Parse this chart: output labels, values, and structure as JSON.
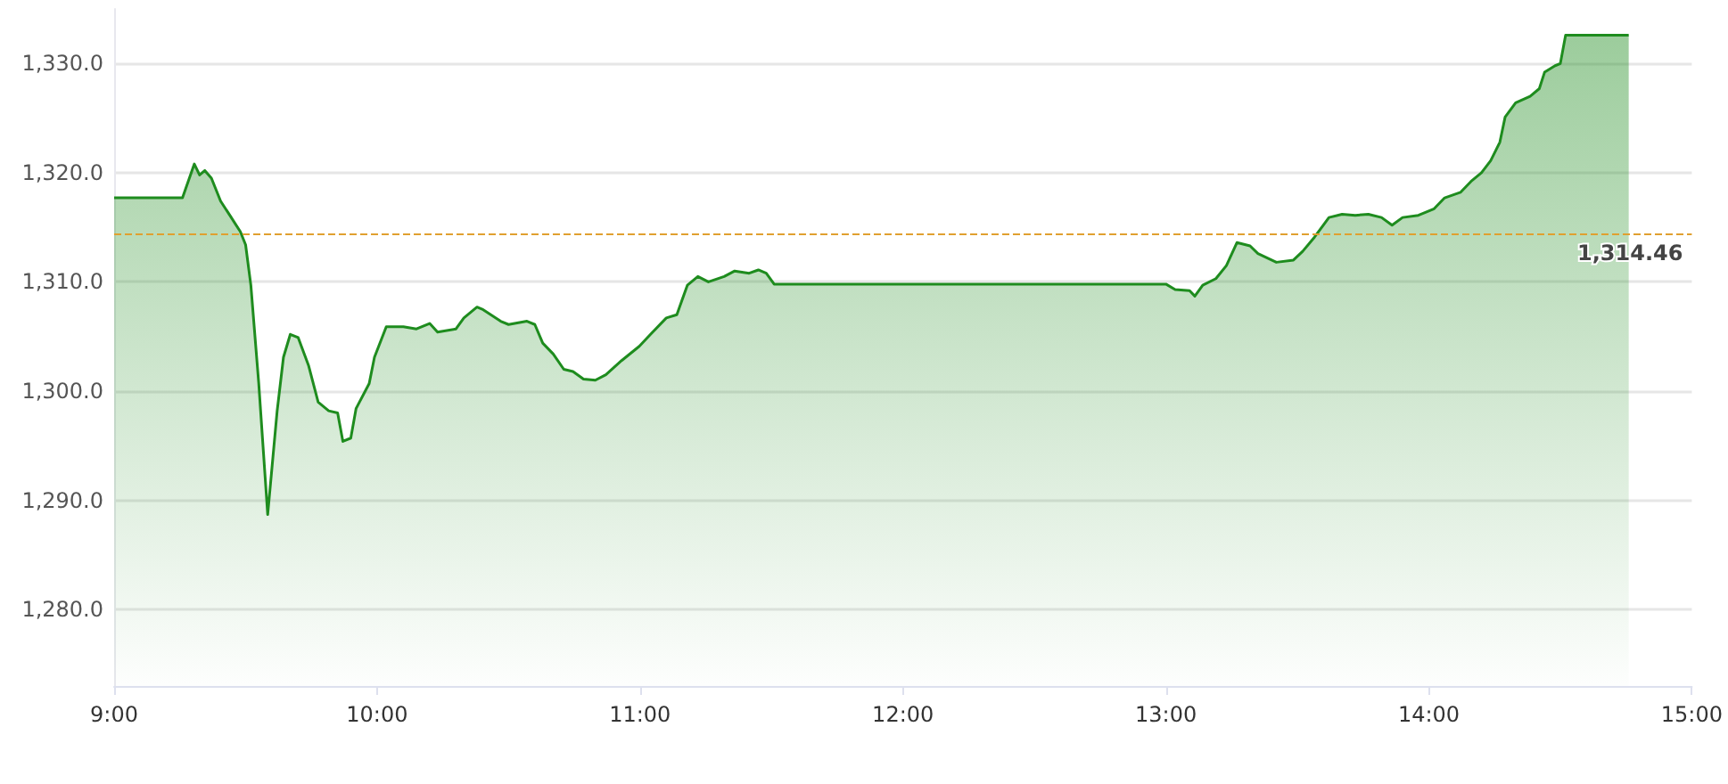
{
  "chart_data": {
    "type": "area",
    "x": [
      9.0,
      9.26,
      9.305,
      9.325,
      9.345,
      9.37,
      9.405,
      9.44,
      9.48,
      9.5,
      9.52,
      9.55,
      9.584,
      9.62,
      9.644,
      9.67,
      9.7,
      9.74,
      9.776,
      9.816,
      9.85,
      9.87,
      9.9,
      9.92,
      9.97,
      9.99,
      10.035,
      10.1,
      10.15,
      10.2,
      10.23,
      10.3,
      10.33,
      10.38,
      10.4,
      10.47,
      10.5,
      10.57,
      10.6,
      10.63,
      10.67,
      10.71,
      10.745,
      10.785,
      10.83,
      10.87,
      10.93,
      10.997,
      11.04,
      11.1,
      11.14,
      11.18,
      11.22,
      11.26,
      11.32,
      11.36,
      11.415,
      11.45,
      11.48,
      11.51,
      13.0,
      13.035,
      13.09,
      13.11,
      13.14,
      13.19,
      13.23,
      13.27,
      13.32,
      13.35,
      13.42,
      13.485,
      13.52,
      13.565,
      13.62,
      13.67,
      13.72,
      13.77,
      13.82,
      13.86,
      13.9,
      13.96,
      14.02,
      14.06,
      14.12,
      14.16,
      14.2,
      14.235,
      14.27,
      14.29,
      14.33,
      14.385,
      14.42,
      14.44,
      14.48,
      14.5,
      14.52,
      14.76
    ],
    "series": [
      {
        "color": "#1e8c1e",
        "values": [
          1317.7,
          1317.7,
          1320.8,
          1319.8,
          1320.2,
          1319.5,
          1317.4,
          1316.1,
          1314.6,
          1313.4,
          1309.7,
          1300.7,
          1288.7,
          1298.2,
          1303.1,
          1305.2,
          1304.9,
          1302.3,
          1299.0,
          1298.2,
          1298.0,
          1295.4,
          1295.7,
          1298.4,
          1300.7,
          1303.1,
          1305.9,
          1305.9,
          1305.7,
          1306.2,
          1305.4,
          1305.7,
          1306.7,
          1307.7,
          1307.5,
          1306.4,
          1306.1,
          1306.4,
          1306.1,
          1304.4,
          1303.4,
          1302.0,
          1301.8,
          1301.1,
          1301.0,
          1301.5,
          1302.8,
          1304.1,
          1305.2,
          1306.7,
          1307.0,
          1309.7,
          1310.5,
          1310.0,
          1310.5,
          1311.0,
          1310.8,
          1311.1,
          1310.8,
          1309.8,
          1309.8,
          1309.3,
          1309.2,
          1308.7,
          1309.7,
          1310.3,
          1311.5,
          1313.6,
          1313.3,
          1312.6,
          1311.8,
          1312.0,
          1312.8,
          1314.1,
          1315.9,
          1316.2,
          1316.1,
          1316.2,
          1315.9,
          1315.2,
          1315.9,
          1316.1,
          1316.7,
          1317.7,
          1318.2,
          1319.2,
          1320.0,
          1321.1,
          1322.8,
          1325.1,
          1326.4,
          1327.0,
          1327.7,
          1329.2,
          1329.8,
          1330.0,
          1332.6,
          1332.6
        ]
      }
    ],
    "xlim": [
      9,
      15
    ],
    "xticks": [
      {
        "value": 9,
        "label": "9:00"
      },
      {
        "value": 10,
        "label": "10:00"
      },
      {
        "value": 11,
        "label": "11:00"
      },
      {
        "value": 12,
        "label": "12:00"
      },
      {
        "value": 13,
        "label": "13:00"
      },
      {
        "value": 14,
        "label": "14:00"
      },
      {
        "value": 15,
        "label": "15:00"
      }
    ],
    "yticks": [
      {
        "value": 1280,
        "label": "1,280.0"
      },
      {
        "value": 1290,
        "label": "1,290.0"
      },
      {
        "value": 1300,
        "label": "1,300.0"
      },
      {
        "value": 1310,
        "label": "1,310.0"
      },
      {
        "value": 1320,
        "label": "1,320.0"
      },
      {
        "value": 1330,
        "label": "1,330.0"
      }
    ],
    "ref_lines": [
      {
        "axis": "y",
        "value": 1314.46,
        "label": "1,314.46",
        "color": "#e0a030",
        "line_style": "dashed"
      }
    ],
    "ylim": [
      1273,
      1335
    ],
    "grid": "y"
  }
}
